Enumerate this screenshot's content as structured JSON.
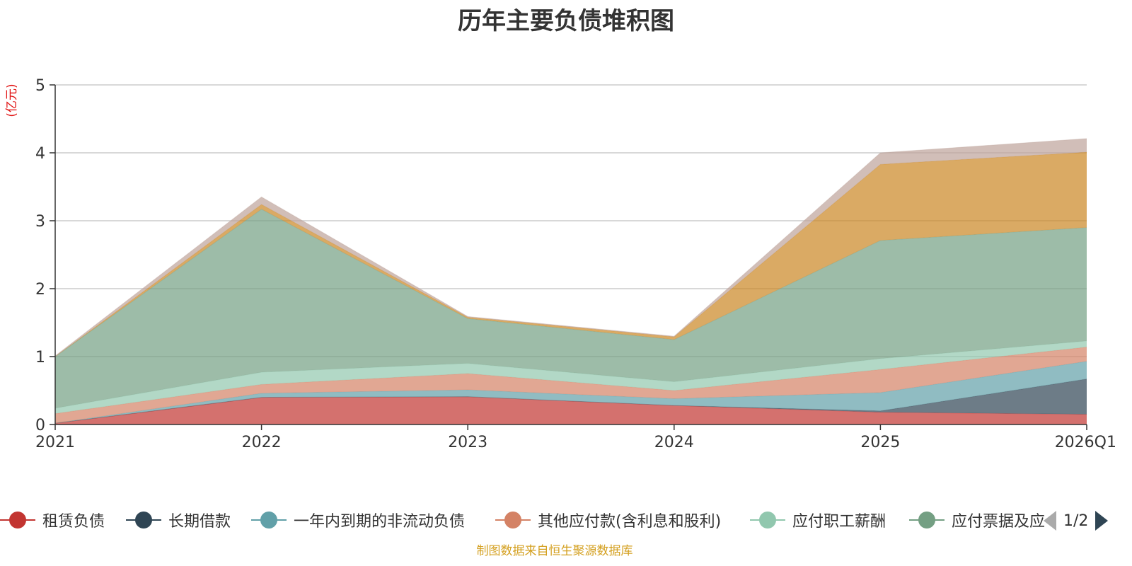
{
  "chart_data": {
    "type": "area",
    "stacked": true,
    "title": "历年主要负债堆积图",
    "ylabel": "(亿元)",
    "xlabel": "",
    "ylim": [
      0,
      5
    ],
    "yticks": [
      0,
      1,
      2,
      3,
      4,
      5
    ],
    "grid": true,
    "legend_position": "bottom",
    "categories": [
      "2021",
      "2022",
      "2023",
      "2024",
      "2025",
      "2026Q1"
    ],
    "series": [
      {
        "name": "租赁负债",
        "color": "#c23531",
        "values": [
          0.02,
          0.4,
          0.41,
          0.28,
          0.18,
          0.15
        ]
      },
      {
        "name": "长期借款",
        "color": "#2f4554",
        "values": [
          0.0,
          0.0,
          0.0,
          0.0,
          0.02,
          0.52
        ]
      },
      {
        "name": "一年内到期的非流动负债",
        "color": "#61a0a8",
        "values": [
          0.0,
          0.06,
          0.1,
          0.1,
          0.27,
          0.26
        ]
      },
      {
        "name": "其他应付款(含利息和股利)",
        "color": "#d48265",
        "values": [
          0.14,
          0.13,
          0.24,
          0.12,
          0.34,
          0.21
        ]
      },
      {
        "name": "应付职工薪酬",
        "color": "#91c7ae",
        "values": [
          0.08,
          0.18,
          0.15,
          0.13,
          0.16,
          0.09
        ]
      },
      {
        "name": "应付票据及应付账款",
        "color": "#749f83",
        "values": [
          0.76,
          2.4,
          0.66,
          0.62,
          1.74,
          1.67
        ]
      },
      {
        "name": "",
        "color": "#ca8622",
        "values": [
          0.0,
          0.07,
          0.02,
          0.04,
          1.12,
          1.11
        ]
      },
      {
        "name": "",
        "color": "#bda29a",
        "values": [
          0.01,
          0.11,
          0.01,
          0.01,
          0.17,
          0.2
        ]
      }
    ]
  },
  "legend": {
    "items": [
      {
        "label": "租赁负债",
        "color": "#c23531"
      },
      {
        "label": "长期借款",
        "color": "#2f4554"
      },
      {
        "label": "一年内到期的非流动负债",
        "color": "#61a0a8"
      },
      {
        "label": "其他应付款(含利息和股利)",
        "color": "#d48265"
      },
      {
        "label": "应付职工薪酬",
        "color": "#91c7ae"
      },
      {
        "label": "应付票据及应",
        "color": "#749f83"
      }
    ],
    "page_label": "1/2",
    "prev_icon": "triangle-left-icon",
    "next_icon": "triangle-right-icon"
  },
  "source_note": "制图数据来自恒生聚源数据库"
}
